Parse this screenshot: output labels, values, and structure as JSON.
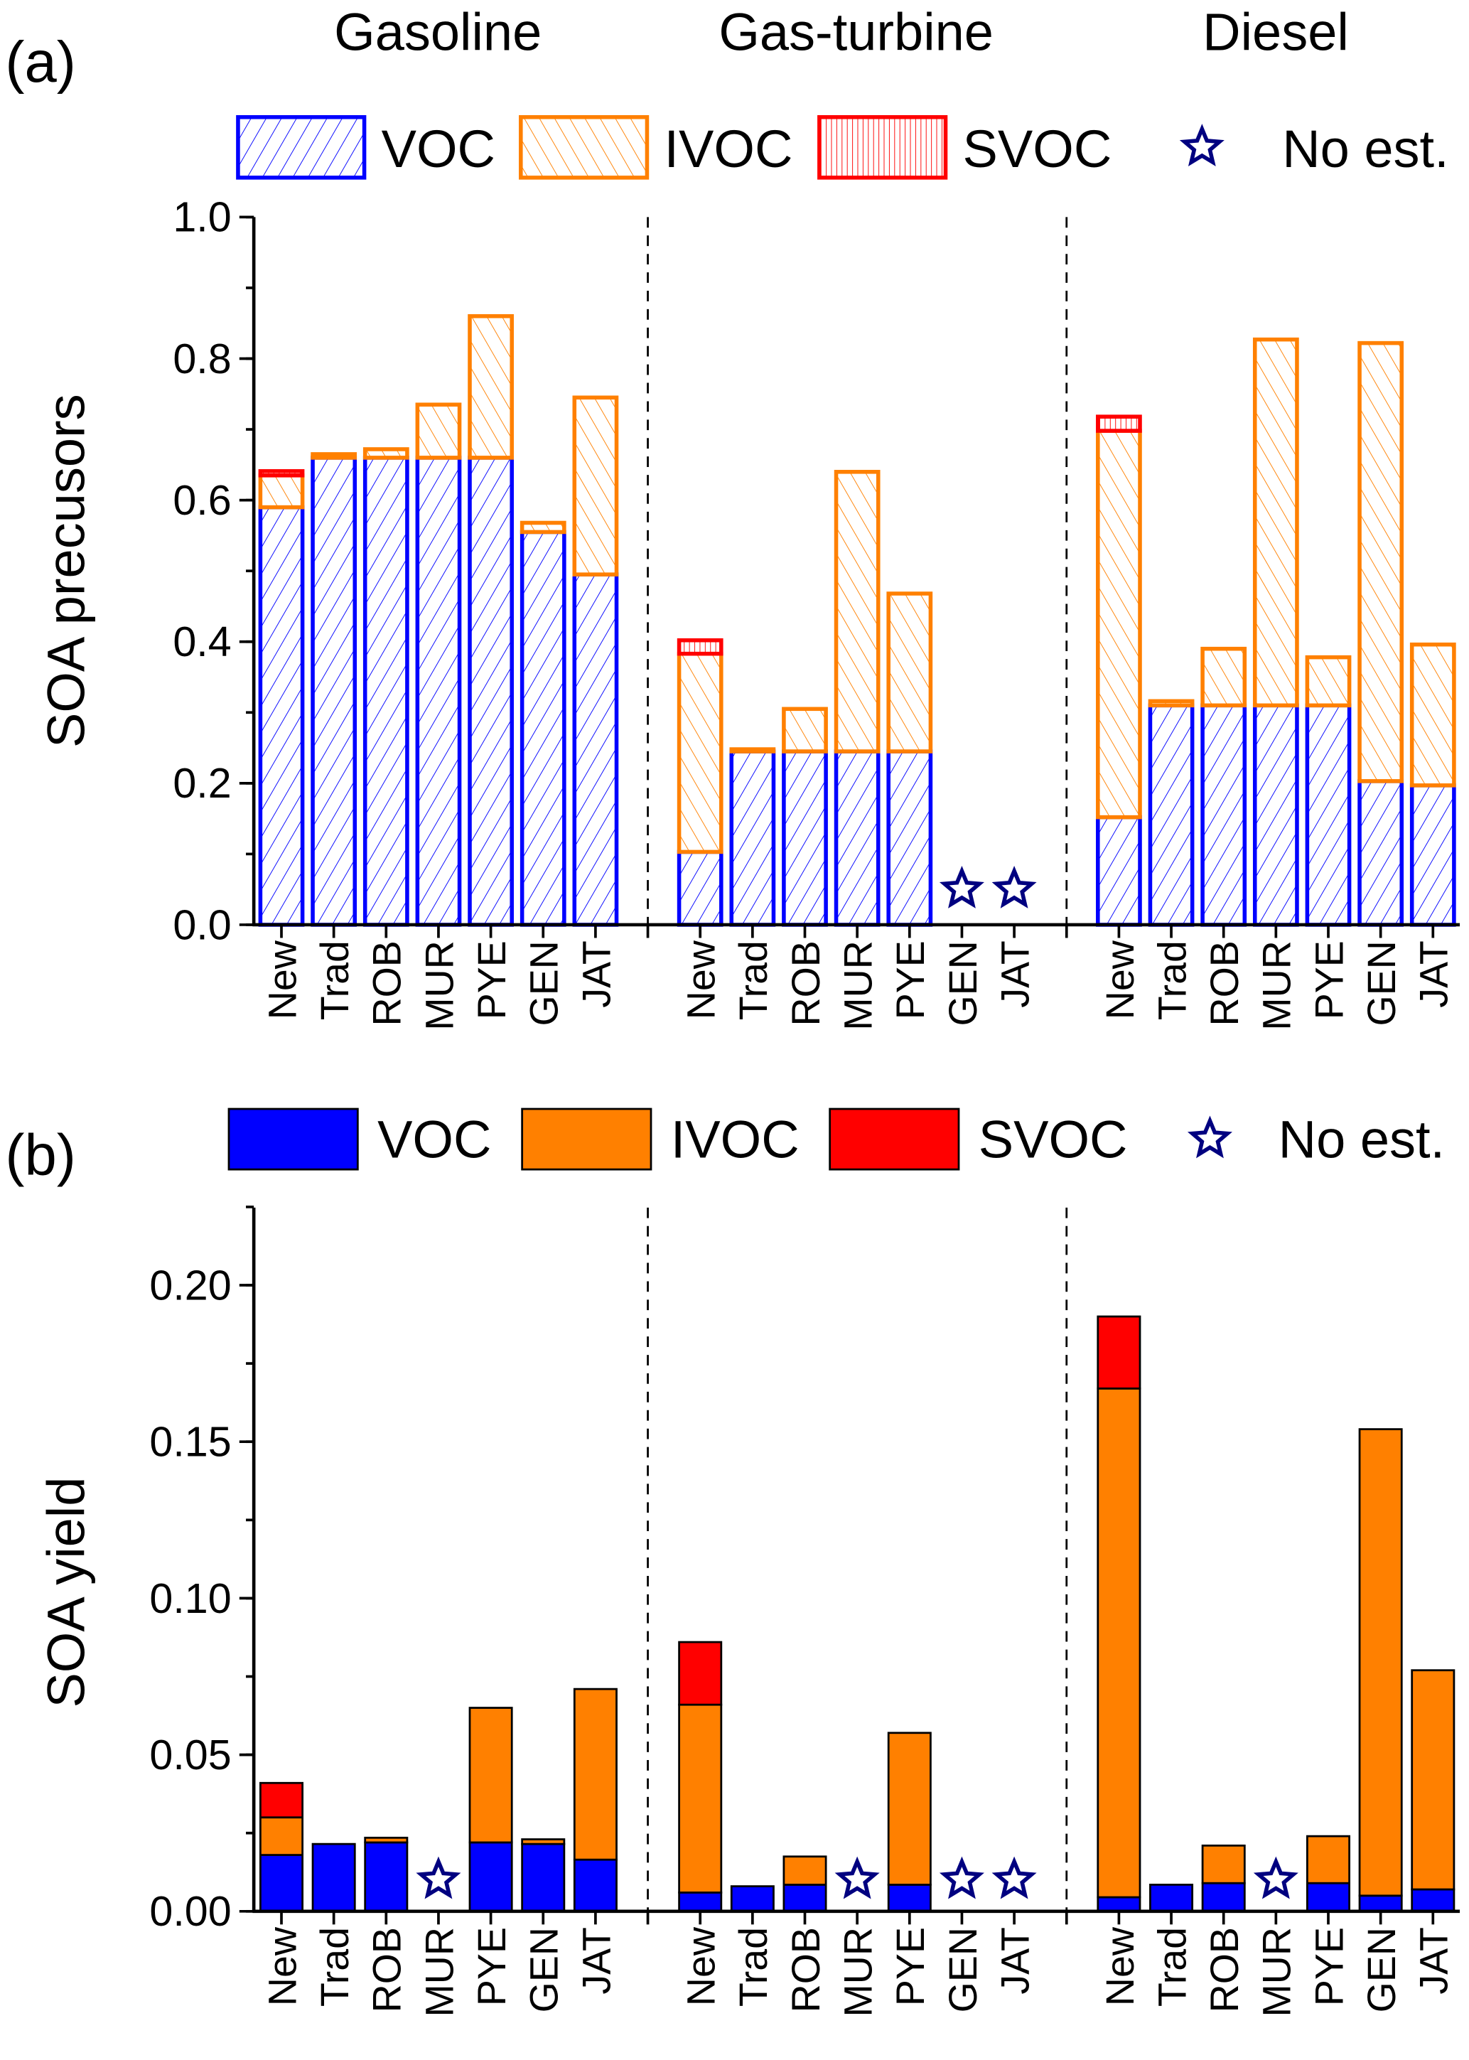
{
  "group_titles": [
    "Gasoline",
    "Gas-turbine",
    "Diesel"
  ],
  "colors": {
    "VOC": "#0000ff",
    "IVOC": "#ff8000",
    "SVOC": "#ff0000",
    "no_est": "#000080"
  },
  "icons": {
    "no_est": "star-outline-icon"
  },
  "chart_data": [
    {
      "panel_label": "(a)",
      "type": "bar",
      "stacked": true,
      "style": "hatched",
      "ylabel": "SOA precusors",
      "ylim": [
        0,
        1.0
      ],
      "yticks": [
        "0.0",
        "0.2",
        "0.4",
        "0.6",
        "0.8",
        "1.0"
      ],
      "ytick_values": [
        0,
        0.2,
        0.4,
        0.6,
        0.8,
        1.0
      ],
      "legend": {
        "placement": "top",
        "entries": [
          "VOC",
          "IVOC",
          "SVOC",
          "No est."
        ]
      },
      "categories": [
        "New",
        "Trad",
        "ROB",
        "MUR",
        "PYE",
        "GEN",
        "JAT"
      ],
      "groups": [
        {
          "name": "Gasoline",
          "VOC": [
            0.59,
            0.66,
            0.66,
            0.66,
            0.66,
            0.555,
            0.495
          ],
          "IVOC": [
            0.045,
            0.005,
            0.012,
            0.075,
            0.2,
            0.013,
            0.25
          ],
          "SVOC": [
            0.006,
            0,
            0,
            0,
            0,
            0,
            0
          ]
        },
        {
          "name": "Gas-turbine",
          "VOC": [
            0.103,
            0.245,
            0.245,
            0.245,
            0.245,
            null,
            null
          ],
          "IVOC": [
            0.28,
            0.003,
            0.06,
            0.395,
            0.223,
            null,
            null
          ],
          "SVOC": [
            0.019,
            0,
            0,
            0,
            0,
            null,
            null
          ]
        },
        {
          "name": "Diesel",
          "VOC": [
            0.152,
            0.31,
            0.31,
            0.31,
            0.31,
            0.203,
            0.197
          ],
          "IVOC": [
            0.546,
            0.006,
            0.08,
            0.517,
            0.068,
            0.619,
            0.199
          ],
          "SVOC": [
            0.02,
            0,
            0,
            0,
            0,
            0,
            0
          ]
        }
      ]
    },
    {
      "panel_label": "(b)",
      "type": "bar",
      "stacked": true,
      "style": "solid",
      "ylabel": "SOA yield",
      "ylim": [
        0,
        0.225
      ],
      "yticks": [
        "0.00",
        "0.05",
        "0.10",
        "0.15",
        "0.20"
      ],
      "ytick_values": [
        0,
        0.05,
        0.1,
        0.15,
        0.2
      ],
      "legend": {
        "placement": "top",
        "entries": [
          "VOC",
          "IVOC",
          "SVOC",
          "No est."
        ]
      },
      "categories": [
        "New",
        "Trad",
        "ROB",
        "MUR",
        "PYE",
        "GEN",
        "JAT"
      ],
      "groups": [
        {
          "name": "Gasoline",
          "VOC": [
            0.018,
            0.0215,
            0.022,
            null,
            0.022,
            0.0215,
            0.0165
          ],
          "IVOC": [
            0.012,
            0,
            0.0015,
            null,
            0.043,
            0.0015,
            0.0545
          ],
          "SVOC": [
            0.011,
            0,
            0,
            null,
            0,
            0,
            0
          ]
        },
        {
          "name": "Gas-turbine",
          "VOC": [
            0.006,
            0.008,
            0.0085,
            null,
            0.0085,
            null,
            null
          ],
          "IVOC": [
            0.06,
            0,
            0.009,
            null,
            0.0485,
            null,
            null
          ],
          "SVOC": [
            0.02,
            0,
            0,
            null,
            0,
            null,
            null
          ]
        },
        {
          "name": "Diesel",
          "VOC": [
            0.0045,
            0.0085,
            0.009,
            null,
            0.009,
            0.005,
            0.007
          ],
          "IVOC": [
            0.1625,
            0,
            0.012,
            null,
            0.015,
            0.149,
            0.07
          ],
          "SVOC": [
            0.023,
            0,
            0,
            null,
            0,
            0,
            0
          ]
        }
      ]
    }
  ]
}
